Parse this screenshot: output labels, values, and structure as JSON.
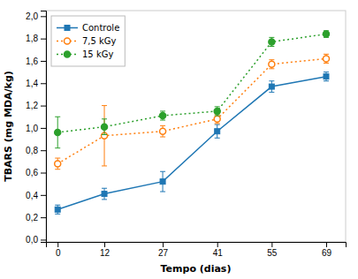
{
  "chart_data": {
    "type": "line",
    "x": [
      0,
      12,
      27,
      41,
      55,
      69
    ],
    "series": [
      {
        "name": "Controle",
        "values": [
          0.27,
          0.41,
          0.52,
          0.97,
          1.37,
          1.46
        ],
        "errors": [
          0.04,
          0.05,
          0.09,
          0.06,
          0.05,
          0.04
        ],
        "marker": "square",
        "line_style": "solid"
      },
      {
        "name": "7,5 kGy",
        "values": [
          0.68,
          0.93,
          0.97,
          1.08,
          1.57,
          1.62
        ],
        "errors": [
          0.05,
          0.27,
          0.05,
          0.04,
          0.04,
          0.04
        ],
        "marker": "circle_open",
        "line_style": "dotted"
      },
      {
        "name": "15 kGy",
        "values": [
          0.96,
          1.01,
          1.11,
          1.15,
          1.77,
          1.84
        ],
        "errors": [
          0.14,
          0.07,
          0.04,
          0.04,
          0.04,
          0.03
        ],
        "marker": "circle",
        "line_style": "dotted"
      }
    ],
    "xlabel": "Tempo (dias)",
    "ylabel": "TBARS (mg MDA/kg)",
    "xlim": [
      -3,
      74
    ],
    "xticks": [
      0,
      12,
      27,
      41,
      55,
      69
    ],
    "ylim": [
      -0.02,
      2.05
    ],
    "yticks": [
      {
        "value": 0.0,
        "label": "0,0"
      },
      {
        "value": 0.2,
        "label": "0,2"
      },
      {
        "value": 0.4,
        "label": "0,4"
      },
      {
        "value": 0.6,
        "label": "0,6"
      },
      {
        "value": 0.8,
        "label": "0,8"
      },
      {
        "value": 1.0,
        "label": "1,0"
      },
      {
        "value": 1.2,
        "label": "1,2"
      },
      {
        "value": 1.4,
        "label": "1,4"
      },
      {
        "value": 1.6,
        "label": "1,6"
      },
      {
        "value": 1.8,
        "label": "1,8"
      },
      {
        "value": 2.0,
        "label": "2,0"
      }
    ],
    "grid": false,
    "legend": "upper left"
  }
}
